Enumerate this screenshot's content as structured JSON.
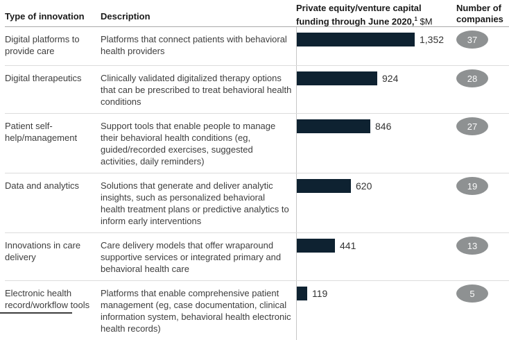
{
  "header": {
    "type_label": "Type of innovation",
    "description_label": "Description",
    "funding_line1": "Private equity/venture capital",
    "funding_line2": "funding through June 2020,",
    "funding_footnote_marker": "1",
    "funding_unit": " $M",
    "companies_line1": "Number of",
    "companies_line2": "companies"
  },
  "rows": [
    {
      "type": "Digital platforms to provide care",
      "description": "Platforms that connect patients with behavioral health providers",
      "funding_label": "1,352",
      "companies": "37"
    },
    {
      "type": "Digital therapeutics",
      "description": "Clinically validated digitalized therapy options that can be prescribed to treat behavioral health conditions",
      "funding_label": "924",
      "companies": "28"
    },
    {
      "type": "Patient self-help/management",
      "description": "Support tools that enable people to manage their behavioral health conditions (eg, guided/recorded exercises, suggested activities, daily reminders)",
      "funding_label": "846",
      "companies": "27"
    },
    {
      "type": "Data and analytics",
      "description": "Solutions that generate and deliver analytic insights, such as personalized behavioral health treatment plans or predictive analytics to inform early interventions",
      "funding_label": "620",
      "companies": "19"
    },
    {
      "type": "Innovations in care delivery",
      "description": "Care delivery models that offer wraparound supportive services or integrated primary and behavioral health care",
      "funding_label": "441",
      "companies": "13"
    },
    {
      "type": "Electronic health record/workflow tools",
      "description": "Platforms that enable comprehensive patient management (eg, case documentation, clinical information system, behavioral health electronic health records)",
      "funding_label": "119",
      "companies": "5"
    }
  ],
  "chart_data": {
    "type": "bar",
    "orientation": "horizontal",
    "title": "Private equity/venture capital funding through June 2020, $M",
    "footnote_marker": "1",
    "categories": [
      "Digital platforms to provide care",
      "Digital therapeutics",
      "Patient self-help/management",
      "Data and analytics",
      "Innovations in care delivery",
      "Electronic health record/workflow tools"
    ],
    "series": [
      {
        "name": "Funding through June 2020, $M",
        "values": [
          1352,
          924,
          846,
          620,
          441,
          119
        ]
      },
      {
        "name": "Number of companies",
        "values": [
          37,
          28,
          27,
          19,
          13,
          5
        ]
      }
    ],
    "values": [
      1352,
      924,
      846,
      620,
      441,
      119
    ],
    "value_labels": [
      "1,352",
      "924",
      "846",
      "620",
      "441",
      "119"
    ],
    "xlim": [
      0,
      1400
    ],
    "grid": false,
    "legend": false,
    "bar_color": "#0e2231",
    "badge_color": "#8e9192",
    "axis_line_color": "#c6c6c6",
    "divider_color": "#dcdcdc",
    "header_divider_color": "#a8a8a8"
  }
}
